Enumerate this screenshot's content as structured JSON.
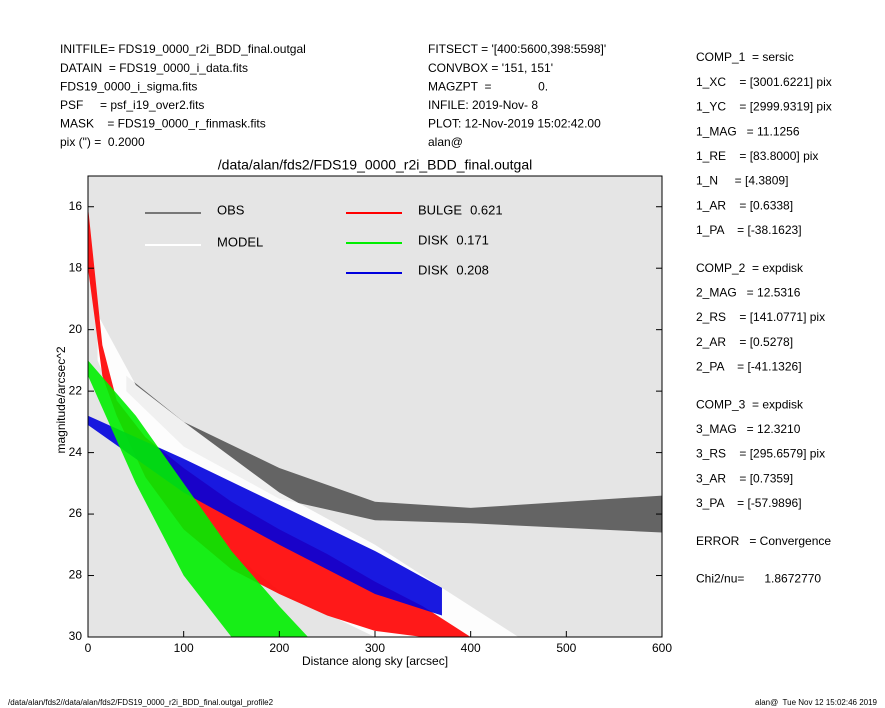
{
  "header": {
    "left": [
      "INITFILE= FDS19_0000_r2i_BDD_final.outgal",
      "DATAIN  = FDS19_0000_i_data.fits",
      "FDS19_0000_i_sigma.fits",
      "PSF     = psf_i19_over2.fits",
      "MASK    = FDS19_0000_r_finmask.fits",
      "pix (\") =  0.2000"
    ],
    "middle": [
      "FITSECT = '[400:5600,398:5598]'",
      "CONVBOX = '151, 151'",
      "MAGZPT  =              0.",
      "INFILE: 2019-Nov- 8",
      "PLOT: 12-Nov-2019 15:02:42.00",
      "alan@"
    ],
    "right": [
      [
        "COMP_1  = sersic",
        "1_XC    = [3001.6221] pix",
        "1_YC    = [2999.9319] pix",
        "1_MAG   = 11.1256",
        "1_RE    = [83.8000] pix",
        "1_N     = [4.3809]",
        "1_AR    = [0.6338]",
        "1_PA    = [-38.1623]"
      ],
      [
        "COMP_2  = expdisk",
        "2_MAG   = 12.5316",
        "2_RS    = [141.0771] pix",
        "2_AR    = [0.5278]",
        "2_PA    = [-41.1326]"
      ],
      [
        "COMP_3  = expdisk",
        "3_MAG   = 12.3210",
        "3_RS    = [295.6579] pix",
        "3_AR    = [0.7359]",
        "3_PA    = [-57.9896]"
      ],
      [
        "ERROR   = Convergence"
      ],
      [
        "Chi2/nu=      1.8672770"
      ]
    ]
  },
  "footer": {
    "left": "/data/alan/fds2//data/alan/fds2/FDS19_0000_r2i_BDD_final.outgal_profile2",
    "right": "alan@  Tue Nov 12 15:02:46 2019"
  },
  "chart_data": {
    "type": "band",
    "title": "/data/alan/fds2/FDS19_0000_r2i_BDD_final.outgal",
    "x_label": "Distance along sky [arcsec]",
    "y_label": "magnitude/arcsec^2",
    "xlim": [
      0,
      600
    ],
    "xticks": [
      0,
      100,
      200,
      300,
      400,
      500,
      600
    ],
    "ylim": [
      30,
      15
    ],
    "yticks": [
      16,
      18,
      20,
      22,
      24,
      26,
      28,
      30
    ],
    "series": [
      {
        "name": "OBS",
        "color": "#555555",
        "x": [
          40,
          100,
          200,
          300,
          400,
          600
        ],
        "values": [
          21.5,
          23,
          24.5,
          25.6,
          25.8,
          25.4
        ],
        "lower": [
          22,
          23.8,
          25.5,
          26.2,
          26.3,
          26.6
        ]
      },
      {
        "name": "MODEL",
        "color": "#ffffff",
        "x": [
          10,
          50,
          100,
          200,
          300,
          450
        ],
        "values": [
          19.5,
          21.8,
          23,
          25.3,
          27,
          30
        ],
        "lower": [
          21,
          24,
          26,
          28.5,
          30,
          30
        ]
      },
      {
        "name": "BULGE",
        "fraction": 0.621,
        "color": "#ff0000",
        "x": [
          0,
          15,
          30,
          60,
          100,
          150,
          200,
          250,
          300,
          350,
          400
        ],
        "values": [
          16,
          20.5,
          22.3,
          23.5,
          24.5,
          25.6,
          26.5,
          27.3,
          28.2,
          29,
          30
        ],
        "lower": [
          18,
          21.5,
          22.8,
          24.8,
          26.5,
          27.8,
          28.6,
          29.3,
          29.8,
          30,
          30
        ]
      },
      {
        "name": "DISK",
        "fraction": 0.208,
        "color": "#0000dd",
        "x": [
          0,
          100,
          200,
          300,
          370
        ],
        "values": [
          22.8,
          24.2,
          25.7,
          27.2,
          28.4
        ],
        "lower": [
          23.1,
          25.3,
          27,
          28.6,
          29.3
        ]
      },
      {
        "name": "DISK",
        "fraction": 0.171,
        "color": "#00ee00",
        "x": [
          0,
          50,
          100,
          150,
          200,
          230
        ],
        "values": [
          21,
          22.8,
          25,
          27.2,
          29,
          30
        ],
        "lower": [
          21.5,
          25,
          28,
          30,
          30,
          30
        ]
      }
    ]
  }
}
